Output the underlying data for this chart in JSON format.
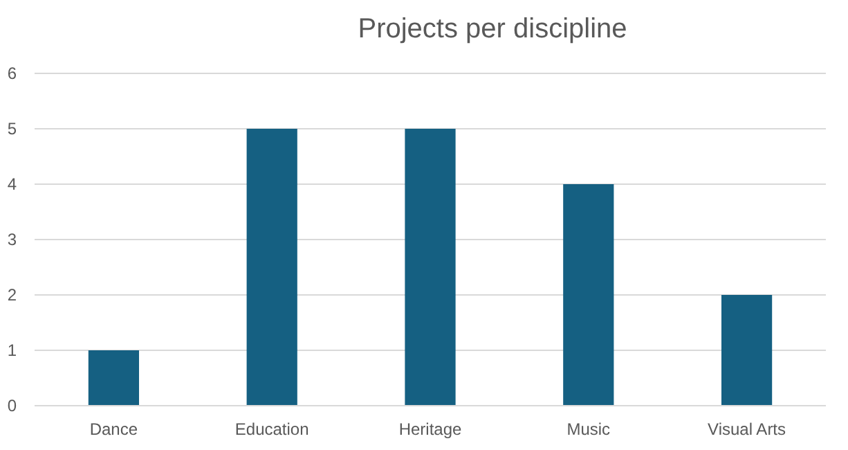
{
  "chart_data": {
    "type": "bar",
    "title": "Projects per discipline",
    "categories": [
      "Dance",
      "Education",
      "Heritage",
      "Music",
      "Visual Arts"
    ],
    "values": [
      1,
      5,
      5,
      4,
      2
    ],
    "color": "#156082",
    "ylim": [
      0,
      6
    ],
    "yticks": [
      0,
      1,
      2,
      3,
      4,
      5,
      6
    ],
    "grid": "y"
  }
}
